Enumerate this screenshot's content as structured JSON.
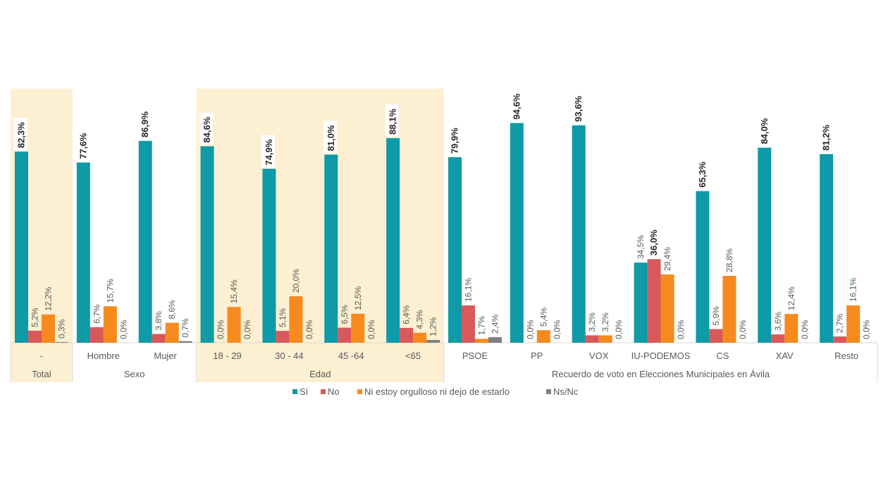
{
  "chart_data": {
    "type": "bar",
    "title": "",
    "xlabel": "",
    "ylabel": "",
    "ylim": [
      0,
      100
    ],
    "grid": false,
    "legend_position": "bottom",
    "groups": [
      {
        "label": "Total",
        "categories": [
          "-"
        ],
        "highlight": true
      },
      {
        "label": "Sexo",
        "categories": [
          "Hombre",
          "Mujer"
        ],
        "highlight": false
      },
      {
        "label": "Edad",
        "categories": [
          "18 - 29",
          "30 - 44",
          "45 -64",
          "<65"
        ],
        "highlight": true
      },
      {
        "label": "Recuerdo de voto en Elecciones Municipales en Ávila",
        "categories": [
          "PSOE",
          "PP",
          "VOX",
          "IU-PODEMOS",
          "CS",
          "XAV",
          "Resto"
        ],
        "highlight": false
      }
    ],
    "categories": [
      "-",
      "Hombre",
      "Mujer",
      "18 - 29",
      "30 - 44",
      "45 -64",
      "<65",
      "PSOE",
      "PP",
      "VOX",
      "IU-PODEMOS",
      "CS",
      "XAV",
      "Resto"
    ],
    "series": [
      {
        "name": "Sí",
        "color": "#0E9AA7",
        "values": [
          82.3,
          77.6,
          86.9,
          84.6,
          74.9,
          81.0,
          88.1,
          79.9,
          94.6,
          93.6,
          34.5,
          65.3,
          84.0,
          81.2
        ]
      },
      {
        "name": "No",
        "color": "#D9595B",
        "values": [
          5.2,
          6.7,
          3.8,
          0.0,
          5.1,
          6.5,
          6.4,
          16.1,
          0.0,
          3.2,
          36.0,
          5.9,
          3.6,
          2.7
        ]
      },
      {
        "name": "Ni estoy orgulloso ni dejo de estarlo",
        "color": "#F68A1E",
        "values": [
          12.2,
          15.7,
          8.6,
          15.4,
          20.0,
          12.5,
          4.3,
          1.7,
          5.4,
          3.2,
          29.4,
          28.8,
          12.4,
          16.1
        ]
      },
      {
        "name": "Ns/Nc",
        "color": "#7F7F7F",
        "values": [
          0.3,
          0.0,
          0.7,
          0.0,
          0.0,
          0.0,
          1.2,
          2.4,
          0.0,
          0.0,
          0.0,
          0.0,
          0.0,
          0.0
        ]
      }
    ],
    "value_labels": [
      [
        "82,3%",
        "5,2%",
        "12,2%",
        "0,3%"
      ],
      [
        "77,6%",
        "6,7%",
        "15,7%",
        "0,0%"
      ],
      [
        "86,9%",
        "3,8%",
        "8,6%",
        "0,7%"
      ],
      [
        "84,6%",
        "0,0%",
        "15,4%",
        "0,0%"
      ],
      [
        "74,9%",
        "5,1%",
        "20,0%",
        "0,0%"
      ],
      [
        "81,0%",
        "6,5%",
        "12,5%",
        "0,0%"
      ],
      [
        "88,1%",
        "6,4%",
        "4,3%",
        "1,2%"
      ],
      [
        "79,9%",
        "16,1%",
        "1,7%",
        "2,4%"
      ],
      [
        "94,6%",
        "0,0%",
        "5,4%",
        "0,0%"
      ],
      [
        "93,6%",
        "3,2%",
        "3,2%",
        "0,0%"
      ],
      [
        "34,5%",
        "36,0%",
        "29,4%",
        "0,0%"
      ],
      [
        "65,3%",
        "5,9%",
        "28,8%",
        "0,0%"
      ],
      [
        "84,0%",
        "3,6%",
        "12,4%",
        "0,0%"
      ],
      [
        "81,2%",
        "2,7%",
        "16,1%",
        "0,0%"
      ]
    ],
    "highlight_color": "#FDF0D2"
  }
}
